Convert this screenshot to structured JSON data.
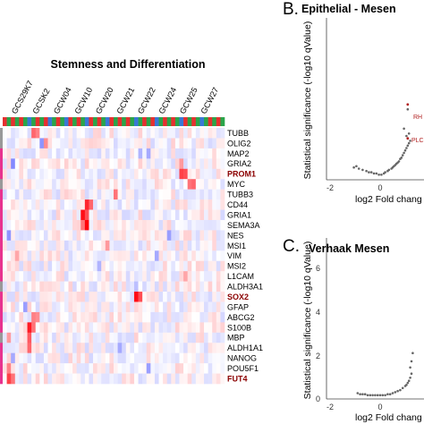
{
  "heatmap": {
    "title": "Stemness and Differentiation",
    "columns": [
      "GCS29K7",
      "GCSK2",
      "GCW04",
      "GCW10",
      "GCW20",
      "GCW21",
      "GCW22",
      "GCW24",
      "GCW25",
      "GCW27"
    ],
    "header_colors": [
      "#e63030",
      "#2aa54a",
      "#e63030",
      "#2aa54a",
      "#e63030",
      "#2aa54a",
      "#3a78d6",
      "#2aa54a",
      "#e63030",
      "#2aa54a",
      "#e63030",
      "#3a78d6",
      "#2aa54a",
      "#e63030",
      "#2aa54a",
      "#3a78d6",
      "#e63030",
      "#2aa54a",
      "#e63030",
      "#2aa54a",
      "#3a78d6",
      "#e63030",
      "#2aa54a",
      "#e63030",
      "#2aa54a",
      "#3a78d6",
      "#e63030",
      "#2aa54a",
      "#e63030",
      "#2aa54a",
      "#e63030",
      "#2aa54a",
      "#3a78d6",
      "#2aa54a",
      "#e63030",
      "#2aa54a",
      "#e63030",
      "#3a78d6",
      "#2aa54a",
      "#e63030",
      "#2aa54a",
      "#e63030",
      "#2aa54a",
      "#3a78d6",
      "#e63030",
      "#2aa54a",
      "#e63030",
      "#2aa54a",
      "#3a78d6",
      "#2aa54a",
      "#e63030",
      "#2aa54a",
      "#e63030",
      "#2aa54a"
    ],
    "side_colors": [
      "#999999",
      "#999999",
      "#e8338f",
      "#e8338f",
      "#e8338f",
      "#999999",
      "#e8338f",
      "#e8338f",
      "#e8338f",
      "#e8338f",
      "#e8338f",
      "#e8338f",
      "#e8338f",
      "#e8338f",
      "#e8338f",
      "#999999",
      "#e8338f",
      "#e8338f",
      "#e8338f",
      "#e8338f",
      "#999999",
      "#e8338f",
      "#e8338f",
      "#e8338f",
      "#e8338f"
    ],
    "genes": [
      {
        "name": "TUBB",
        "highlight": false
      },
      {
        "name": "OLIG2",
        "highlight": false
      },
      {
        "name": "MAP2",
        "highlight": false
      },
      {
        "name": "GRIA2",
        "highlight": false
      },
      {
        "name": "PROM1",
        "highlight": true
      },
      {
        "name": "MYC",
        "highlight": false
      },
      {
        "name": "TUBB3",
        "highlight": false
      },
      {
        "name": "CD44",
        "highlight": false
      },
      {
        "name": "GRIA1",
        "highlight": false
      },
      {
        "name": "SEMA3A",
        "highlight": false
      },
      {
        "name": "NES",
        "highlight": false
      },
      {
        "name": "MSI1",
        "highlight": false
      },
      {
        "name": "VIM",
        "highlight": false
      },
      {
        "name": "MSI2",
        "highlight": false
      },
      {
        "name": "L1CAM",
        "highlight": false
      },
      {
        "name": "ALDH3A1",
        "highlight": false
      },
      {
        "name": "SOX2",
        "highlight": true
      },
      {
        "name": "GFAP",
        "highlight": false
      },
      {
        "name": "ABCG2",
        "highlight": false
      },
      {
        "name": "S100B",
        "highlight": false
      },
      {
        "name": "MBP",
        "highlight": false
      },
      {
        "name": "ALDH1A1",
        "highlight": false
      },
      {
        "name": "NANOG",
        "highlight": false
      },
      {
        "name": "POU5F1",
        "highlight": false
      },
      {
        "name": "FUT4",
        "highlight": true
      }
    ]
  },
  "panel_b": {
    "letter": "B.",
    "title": "Epithelial - Mesen",
    "xlabel": "log2 Fold chang",
    "ylabel": "Statistical significance (-log10 qValue)",
    "x_ticks": [
      "-2",
      "0"
    ],
    "point_labels": [
      "RH",
      "PLC"
    ]
  },
  "panel_c": {
    "letter": "C.",
    "title": "Verhaak Mesen",
    "xlabel": "log2 Fold chang",
    "ylabel": "Statistical significance (-log10 qValue)",
    "y_ticks": [
      "6",
      "4",
      "2",
      "0"
    ],
    "x_ticks": [
      "-2",
      "0"
    ]
  },
  "chart_data": [
    {
      "type": "heatmap",
      "title": "Stemness and Differentiation",
      "rows": [
        "TUBB",
        "OLIG2",
        "MAP2",
        "GRIA2",
        "PROM1",
        "MYC",
        "TUBB3",
        "CD44",
        "GRIA1",
        "SEMA3A",
        "NES",
        "MSI1",
        "VIM",
        "MSI2",
        "L1CAM",
        "ALDH3A1",
        "SOX2",
        "GFAP",
        "ABCG2",
        "S100B",
        "MBP",
        "ALDH1A1",
        "NANOG",
        "POU5F1",
        "FUT4"
      ],
      "column_labels": [
        "GCS29K7",
        "GCSK2",
        "GCW04",
        "GCW10",
        "GCW20",
        "GCW21",
        "GCW22",
        "GCW24",
        "GCW25",
        "GCW27"
      ],
      "n_columns": 54,
      "scale": "blue (low) - white - red (high)",
      "hotspots": [
        {
          "row": 0,
          "col": 7,
          "v": 0.6
        },
        {
          "row": 0,
          "col": 8,
          "v": 0.5
        },
        {
          "row": 1,
          "col": 9,
          "v": -0.5
        },
        {
          "row": 1,
          "col": 10,
          "v": 0.45
        },
        {
          "row": 2,
          "col": 35,
          "v": -0.4
        },
        {
          "row": 2,
          "col": 33,
          "v": -0.35
        },
        {
          "row": 3,
          "col": 2,
          "v": -0.55
        },
        {
          "row": 3,
          "col": 43,
          "v": 0.4
        },
        {
          "row": 4,
          "col": 43,
          "v": 0.75
        },
        {
          "row": 4,
          "col": 44,
          "v": 0.7
        },
        {
          "row": 5,
          "col": 45,
          "v": 0.55
        },
        {
          "row": 5,
          "col": 46,
          "v": 0.6
        },
        {
          "row": 6,
          "col": 27,
          "v": 0.55
        },
        {
          "row": 7,
          "col": 20,
          "v": 0.85
        },
        {
          "row": 7,
          "col": 21,
          "v": 0.6
        },
        {
          "row": 8,
          "col": 19,
          "v": 0.95
        },
        {
          "row": 8,
          "col": 20,
          "v": 0.7
        },
        {
          "row": 9,
          "col": 20,
          "v": 1.0
        },
        {
          "row": 9,
          "col": 19,
          "v": 0.55
        },
        {
          "row": 10,
          "col": 1,
          "v": -0.5
        },
        {
          "row": 10,
          "col": 40,
          "v": -0.45
        },
        {
          "row": 11,
          "col": 25,
          "v": 0.4
        },
        {
          "row": 12,
          "col": 3,
          "v": 0.35
        },
        {
          "row": 12,
          "col": 37,
          "v": -0.4
        },
        {
          "row": 13,
          "col": 23,
          "v": -0.35
        },
        {
          "row": 14,
          "col": 44,
          "v": 0.35
        },
        {
          "row": 15,
          "col": 32,
          "v": -0.3
        },
        {
          "row": 16,
          "col": 32,
          "v": 0.95
        },
        {
          "row": 16,
          "col": 33,
          "v": 0.7
        },
        {
          "row": 17,
          "col": 5,
          "v": -0.45
        },
        {
          "row": 18,
          "col": 7,
          "v": 0.5
        },
        {
          "row": 18,
          "col": 8,
          "v": 0.45
        },
        {
          "row": 19,
          "col": 6,
          "v": 0.9
        },
        {
          "row": 19,
          "col": 7,
          "v": 0.55
        },
        {
          "row": 20,
          "col": 6,
          "v": 0.65
        },
        {
          "row": 20,
          "col": 1,
          "v": 0.4
        },
        {
          "row": 21,
          "col": 6,
          "v": 0.6
        },
        {
          "row": 21,
          "col": 28,
          "v": -0.4
        },
        {
          "row": 22,
          "col": 2,
          "v": -0.4
        },
        {
          "row": 23,
          "col": 1,
          "v": 0.5
        },
        {
          "row": 23,
          "col": 35,
          "v": -0.45
        },
        {
          "row": 24,
          "col": 1,
          "v": 0.75
        },
        {
          "row": 24,
          "col": 2,
          "v": 0.55
        }
      ]
    },
    {
      "type": "scatter",
      "title": "Epithelial - Mesen",
      "xlabel": "log2 Fold chang",
      "ylabel": "Statistical significance (-log10 qValue)",
      "xlim": [
        -2.3,
        1.4
      ],
      "ylim": [
        0,
        6.5
      ],
      "labeled_points": [
        {
          "label": "RH",
          "x": 1.1,
          "y": 3.0
        },
        {
          "label": "PLC",
          "x": 1.1,
          "y": 1.6
        }
      ],
      "x": [
        -1.05,
        -0.95,
        -0.85,
        -0.7,
        -0.55,
        -0.45,
        -0.35,
        -0.25,
        -0.15,
        -0.05,
        0.05,
        0.15,
        0.2,
        0.3,
        0.35,
        0.45,
        0.5,
        0.55,
        0.6,
        0.65,
        0.7,
        0.75,
        0.8,
        0.85,
        0.9,
        0.95,
        1.0,
        1.05,
        1.1,
        1.15,
        1.2,
        0.95,
        1.05,
        1.15,
        1.1
      ],
      "y": [
        0.4,
        0.45,
        0.35,
        0.3,
        0.25,
        0.2,
        0.2,
        0.15,
        0.15,
        0.1,
        0.1,
        0.15,
        0.2,
        0.25,
        0.3,
        0.35,
        0.4,
        0.45,
        0.5,
        0.55,
        0.6,
        0.65,
        0.75,
        0.8,
        0.9,
        1.0,
        1.1,
        1.2,
        1.3,
        1.4,
        1.5,
        2.0,
        1.7,
        1.8,
        2.8
      ]
    },
    {
      "type": "scatter",
      "title": "Verhaak Mesen",
      "xlabel": "log2 Fold chang",
      "ylabel": "Statistical significance (-log10 qValue)",
      "xlim": [
        -2.3,
        1.4
      ],
      "ylim": [
        0,
        6.3
      ],
      "x": [
        -0.9,
        -0.8,
        -0.7,
        -0.6,
        -0.5,
        -0.4,
        -0.3,
        -0.2,
        -0.1,
        0.0,
        0.1,
        0.2,
        0.3,
        0.4,
        0.5,
        0.6,
        0.7,
        0.8,
        0.9,
        1.0,
        1.05,
        1.1,
        1.15,
        1.2,
        1.25,
        1.2,
        1.25,
        1.3
      ],
      "y": [
        0.15,
        0.1,
        0.1,
        0.1,
        0.05,
        0.05,
        0.05,
        0.05,
        0.05,
        0.05,
        0.05,
        0.05,
        0.1,
        0.1,
        0.15,
        0.2,
        0.25,
        0.3,
        0.4,
        0.5,
        0.55,
        0.65,
        0.75,
        0.9,
        1.1,
        1.4,
        1.7,
        2.1
      ]
    }
  ]
}
